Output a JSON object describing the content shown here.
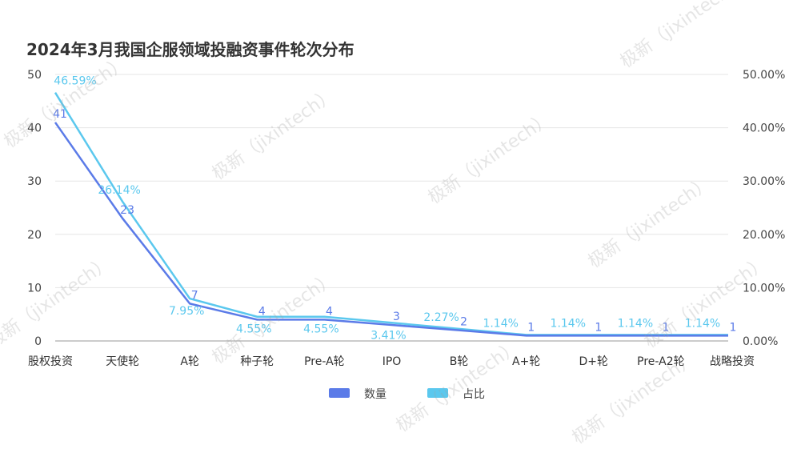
{
  "watermark": "极新（jixintech）",
  "chart_data": {
    "type": "line",
    "title": "2024年3月我国企服领域投融资事件轮次分布",
    "categories": [
      "股权投资",
      "天使轮",
      "A轮",
      "种子轮",
      "Pre-A轮",
      "IPO",
      "B轮",
      "A+轮",
      "D+轮",
      "Pre-A2轮",
      "战略投资"
    ],
    "y_left": {
      "ticks": [
        "0",
        "10",
        "20",
        "30",
        "40",
        "50"
      ],
      "range": [
        0,
        50
      ]
    },
    "y_right": {
      "ticks": [
        "0.00%",
        "10.00%",
        "20.00%",
        "30.00%",
        "40.00%",
        "50.00%"
      ],
      "range": [
        0,
        50
      ]
    },
    "grid": true,
    "legend_position": "bottom",
    "series": [
      {
        "name": "数量",
        "axis": "left",
        "color": "#5b7be8",
        "values": [
          41,
          23,
          7,
          4,
          4,
          3,
          2,
          1,
          1,
          1,
          1
        ],
        "labels": [
          "41",
          "23",
          "7",
          "4",
          "4",
          "3",
          "2",
          "1",
          "1",
          "1",
          "1"
        ]
      },
      {
        "name": "占比",
        "axis": "right",
        "color": "#5bc8ee",
        "values": [
          46.59,
          26.14,
          7.95,
          4.55,
          4.55,
          3.41,
          2.27,
          1.14,
          1.14,
          1.14,
          1.14
        ],
        "labels": [
          "46.59%",
          "26.14%",
          "7.95%",
          "4.55%",
          "4.55%",
          "3.41%",
          "2.27%",
          "1.14%",
          "1.14%",
          "1.14%",
          "1.14%"
        ]
      }
    ]
  }
}
